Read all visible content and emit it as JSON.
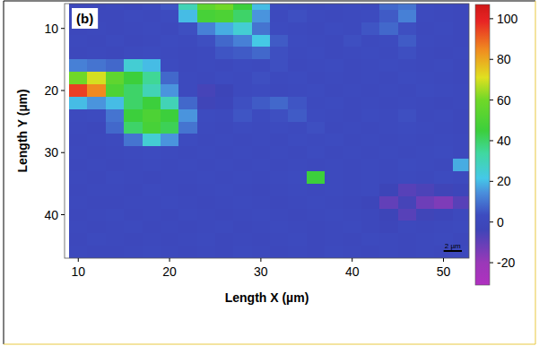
{
  "chart_data": {
    "type": "heatmap",
    "panel_label": "(b)",
    "x_label": "Length X (µm)",
    "y_label": "Length Y (µm)",
    "xlim": [
      8.5,
      52.8
    ],
    "ylim": [
      47,
      6
    ],
    "xticks": [
      10,
      20,
      30,
      40,
      50
    ],
    "yticks": [
      10,
      20,
      30,
      40
    ],
    "x": [
      10,
      12,
      14,
      16,
      18,
      20,
      22,
      24,
      26,
      28,
      30,
      32,
      34,
      36,
      38,
      40,
      42,
      44,
      46,
      48,
      50,
      52
    ],
    "y": [
      6,
      8,
      10,
      12,
      14,
      16,
      18,
      20,
      22,
      24,
      26,
      28,
      30,
      32,
      34,
      36,
      38,
      40,
      42,
      44,
      46
    ],
    "values": [
      [
        0,
        0,
        1,
        0,
        2,
        5,
        30,
        55,
        60,
        45,
        20,
        3,
        2,
        1,
        2,
        3,
        2,
        8,
        10,
        3,
        2,
        1
      ],
      [
        1,
        0,
        0,
        2,
        1,
        3,
        20,
        48,
        50,
        40,
        15,
        2,
        4,
        2,
        1,
        2,
        3,
        6,
        12,
        2,
        1,
        0
      ],
      [
        0,
        1,
        0,
        1,
        2,
        1,
        4,
        12,
        18,
        25,
        10,
        3,
        2,
        1,
        3,
        2,
        5,
        8,
        4,
        1,
        2,
        0
      ],
      [
        1,
        0,
        2,
        0,
        1,
        3,
        2,
        4,
        8,
        12,
        22,
        6,
        3,
        2,
        1,
        4,
        2,
        3,
        6,
        2,
        1,
        0
      ],
      [
        0,
        1,
        0,
        2,
        3,
        2,
        1,
        2,
        5,
        6,
        8,
        4,
        2,
        3,
        1,
        2,
        3,
        2,
        4,
        1,
        0,
        1
      ],
      [
        12,
        10,
        8,
        25,
        20,
        3,
        1,
        2,
        1,
        3,
        2,
        4,
        1,
        2,
        3,
        1,
        2,
        3,
        2,
        1,
        2,
        0
      ],
      [
        60,
        70,
        55,
        45,
        35,
        8,
        2,
        1,
        3,
        2,
        4,
        2,
        3,
        1,
        2,
        1,
        2,
        1,
        3,
        2,
        1,
        0
      ],
      [
        95,
        85,
        50,
        40,
        30,
        15,
        2,
        -5,
        -3,
        2,
        3,
        1,
        2,
        3,
        1,
        2,
        1,
        2,
        1,
        3,
        2,
        1
      ],
      [
        20,
        15,
        20,
        40,
        45,
        30,
        8,
        -4,
        -2,
        4,
        6,
        8,
        5,
        2,
        3,
        1,
        2,
        1,
        2,
        1,
        0,
        1
      ],
      [
        2,
        3,
        10,
        45,
        50,
        45,
        15,
        3,
        2,
        5,
        3,
        4,
        6,
        3,
        2,
        1,
        3,
        2,
        4,
        1,
        2,
        0
      ],
      [
        1,
        0,
        8,
        40,
        48,
        42,
        10,
        2,
        1,
        3,
        2,
        3,
        2,
        4,
        1,
        2,
        1,
        2,
        3,
        2,
        1,
        0
      ],
      [
        0,
        1,
        2,
        10,
        25,
        15,
        3,
        1,
        2,
        1,
        2,
        1,
        3,
        2,
        3,
        1,
        2,
        1,
        2,
        1,
        2,
        1
      ],
      [
        1,
        0,
        1,
        2,
        3,
        2,
        1,
        2,
        1,
        2,
        1,
        2,
        1,
        3,
        1,
        2,
        1,
        2,
        1,
        2,
        3,
        1
      ],
      [
        0,
        1,
        0,
        1,
        2,
        1,
        2,
        1,
        2,
        1,
        2,
        1,
        2,
        1,
        2,
        1,
        2,
        1,
        3,
        2,
        1,
        18
      ],
      [
        1,
        0,
        2,
        1,
        0,
        1,
        1,
        2,
        1,
        2,
        1,
        2,
        3,
        45,
        2,
        1,
        2,
        1,
        2,
        1,
        3,
        2
      ],
      [
        0,
        1,
        1,
        0,
        2,
        1,
        0,
        1,
        2,
        1,
        0,
        1,
        2,
        1,
        2,
        1,
        2,
        -3,
        -8,
        -6,
        -4,
        -2
      ],
      [
        1,
        0,
        0,
        1,
        1,
        2,
        1,
        0,
        1,
        2,
        1,
        0,
        1,
        2,
        1,
        0,
        -2,
        -10,
        -5,
        -12,
        -15,
        -8
      ],
      [
        0,
        1,
        2,
        0,
        1,
        0,
        2,
        1,
        0,
        1,
        2,
        1,
        0,
        1,
        2,
        1,
        0,
        -3,
        -8,
        -4,
        -2,
        1
      ],
      [
        1,
        0,
        1,
        2,
        0,
        1,
        0,
        1,
        2,
        0,
        1,
        2,
        1,
        0,
        1,
        2,
        0,
        -2,
        1,
        0,
        1,
        2
      ],
      [
        0,
        2,
        1,
        0,
        1,
        0,
        1,
        2,
        0,
        1,
        0,
        1,
        2,
        0,
        1,
        0,
        2,
        1,
        0,
        1,
        2,
        0
      ],
      [
        1,
        0,
        0,
        1,
        2,
        1,
        0,
        1,
        0,
        2,
        1,
        0,
        1,
        0,
        2,
        1,
        0,
        1,
        0,
        1,
        0,
        1
      ]
    ],
    "colorbar": {
      "range": [
        -31,
        107
      ],
      "ticks": [
        -20,
        0,
        20,
        40,
        60,
        80,
        100
      ]
    },
    "annotations": [
      {
        "text": "2 µm",
        "length": 2
      }
    ]
  }
}
